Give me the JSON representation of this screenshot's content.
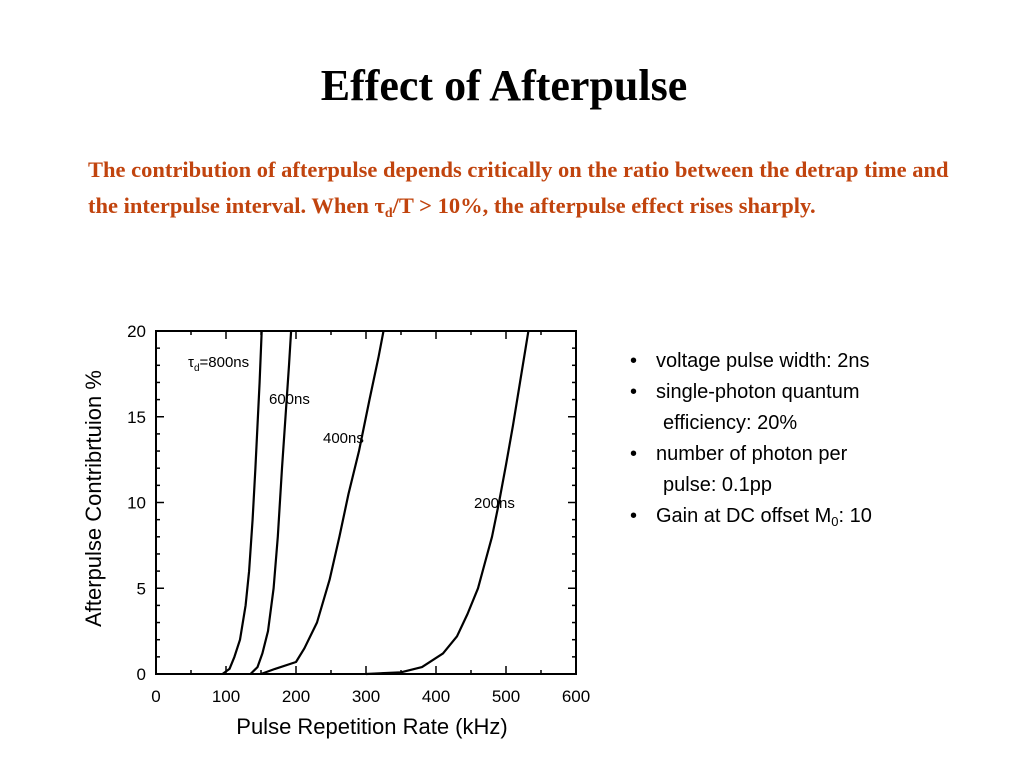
{
  "slide": {
    "title": "Effect of Afterpulse",
    "intro": {
      "part1": "The contribution of afterpulse depends critically on the ratio between the detrap time and the interpulse interval.  When ",
      "tau": "τ",
      "sub": "d",
      "part2": "/T > 10%, the afterpulse effect rises sharply."
    },
    "bullets": [
      {
        "marker": "•",
        "line1": "voltage pulse width: 2ns"
      },
      {
        "marker": "•",
        "line1": "single-photon quantum",
        "line2": "efficiency: 20%"
      },
      {
        "marker": "•",
        "line1": "number of photon per",
        "line2": "pulse: 0.1pp"
      },
      {
        "marker": "•",
        "line1_main": "Gain at DC offset M",
        "line1_sub": "0",
        "line1_tail": ": 10"
      }
    ]
  },
  "chart_data": {
    "type": "line",
    "xlabel": "Pulse Repetition Rate (kHz)",
    "ylabel": "Afterpulse Contribrtuion  %",
    "xlim": [
      0,
      600
    ],
    "ylim": [
      0,
      20
    ],
    "x_ticks": [
      0,
      100,
      200,
      300,
      400,
      500,
      600
    ],
    "y_ticks": [
      0,
      5,
      10,
      15,
      20
    ],
    "grid": false,
    "legend": "none",
    "line_color": "#000000",
    "series": [
      {
        "name": "τd=800ns",
        "label_main": "τ",
        "label_sub": "d",
        "label_tail": "=800ns",
        "points": [
          [
            95,
            0
          ],
          [
            105,
            0.3
          ],
          [
            112,
            1
          ],
          [
            120,
            2
          ],
          [
            128,
            4
          ],
          [
            133,
            6
          ],
          [
            138,
            9
          ],
          [
            142,
            12
          ],
          [
            145,
            14.5
          ],
          [
            148,
            17
          ],
          [
            151,
            20
          ]
        ]
      },
      {
        "name": "600ns",
        "points": [
          [
            135,
            0
          ],
          [
            145,
            0.4
          ],
          [
            152,
            1.2
          ],
          [
            160,
            2.5
          ],
          [
            168,
            5
          ],
          [
            174,
            8
          ],
          [
            180,
            12
          ],
          [
            185,
            15
          ],
          [
            190,
            18
          ],
          [
            193,
            20
          ]
        ]
      },
      {
        "name": "400ns",
        "points": [
          [
            150,
            0
          ],
          [
            170,
            0.3
          ],
          [
            200,
            0.7
          ],
          [
            212,
            1.5
          ],
          [
            230,
            3
          ],
          [
            248,
            5.5
          ],
          [
            262,
            8
          ],
          [
            275,
            10.5
          ],
          [
            290,
            13
          ],
          [
            305,
            16
          ],
          [
            318,
            18.5
          ],
          [
            325,
            20
          ]
        ]
      },
      {
        "name": "200ns",
        "points": [
          [
            300,
            0
          ],
          [
            350,
            0.1
          ],
          [
            380,
            0.4
          ],
          [
            410,
            1.2
          ],
          [
            430,
            2.2
          ],
          [
            445,
            3.5
          ],
          [
            460,
            5
          ],
          [
            470,
            6.5
          ],
          [
            480,
            8
          ],
          [
            490,
            10
          ],
          [
            500,
            12.2
          ],
          [
            510,
            14.5
          ],
          [
            520,
            17
          ],
          [
            528,
            19
          ],
          [
            532,
            20
          ]
        ]
      }
    ]
  }
}
